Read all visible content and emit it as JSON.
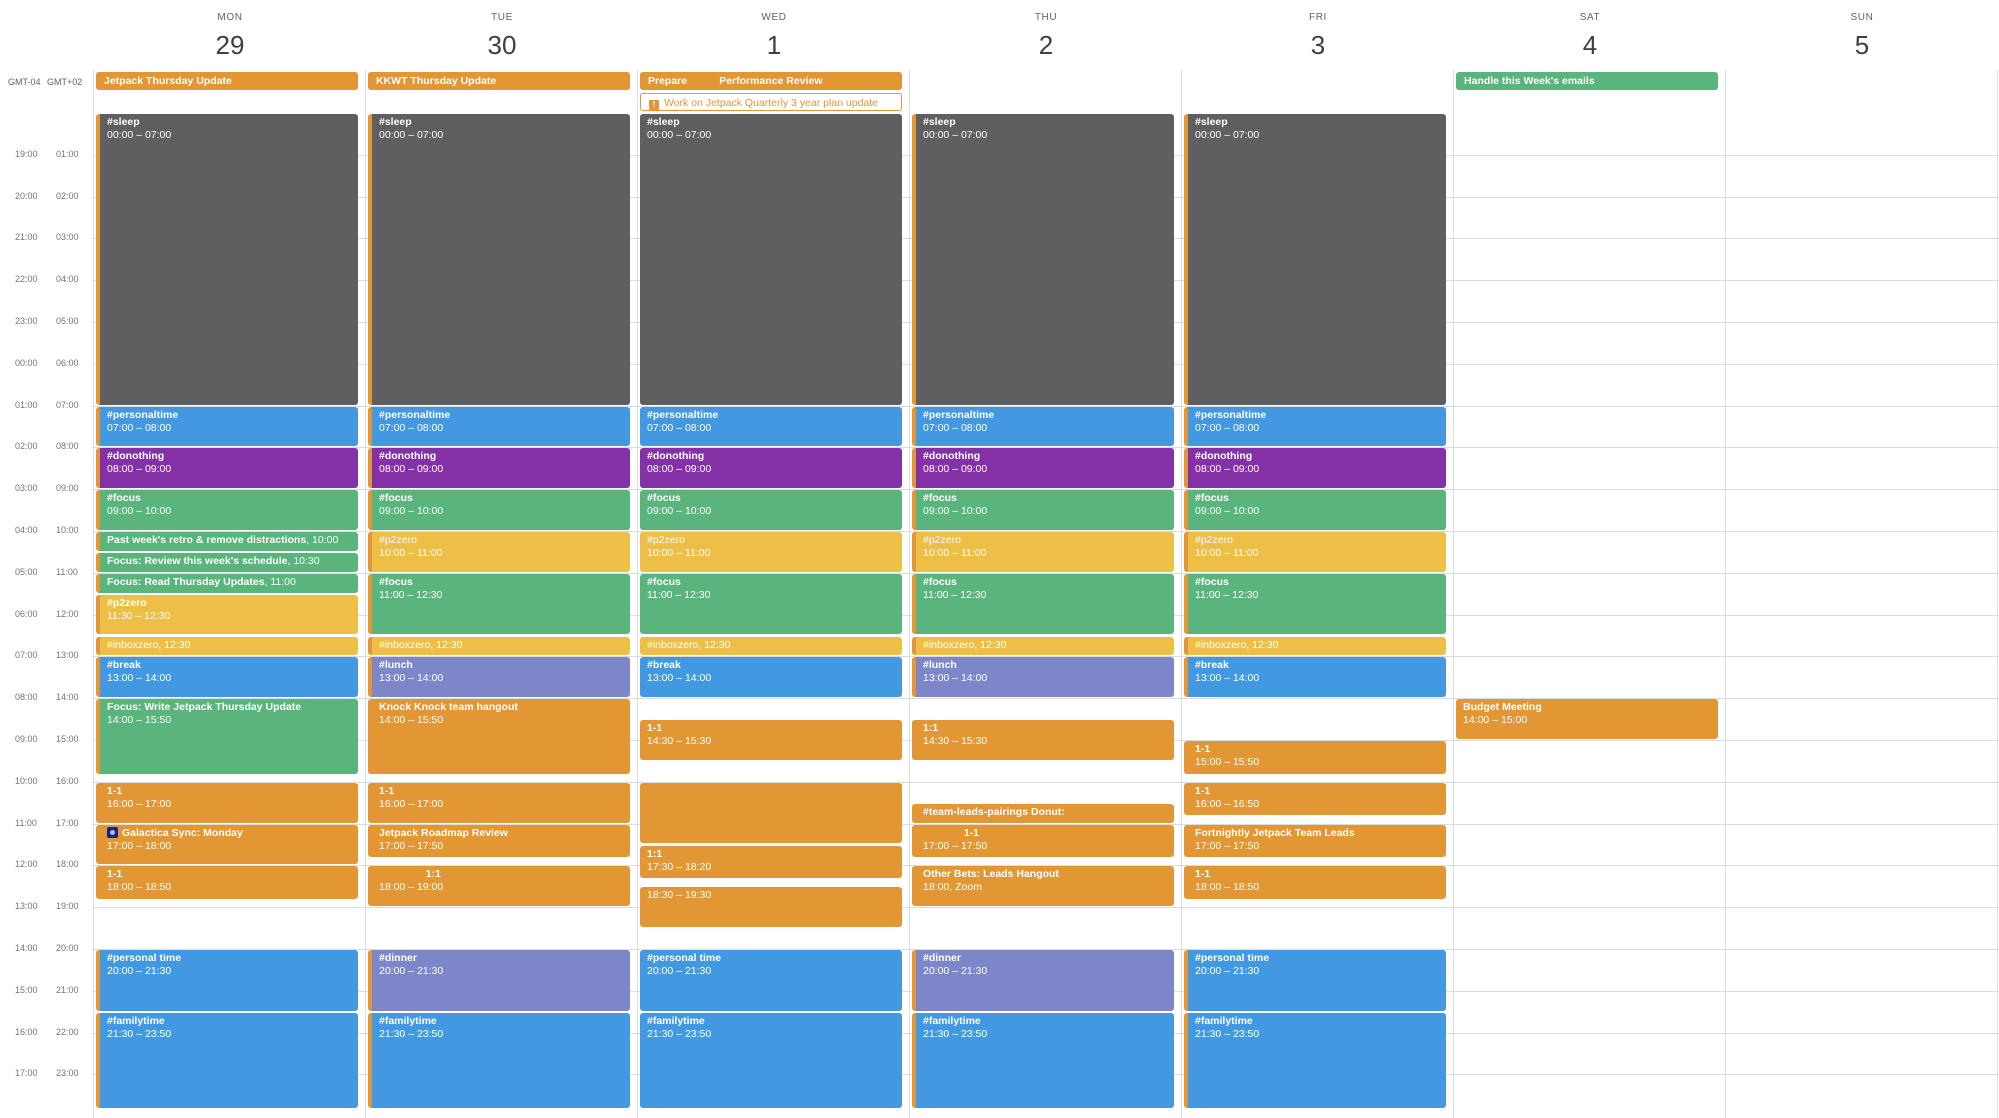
{
  "days": [
    {
      "name": "MON",
      "num": "29"
    },
    {
      "name": "TUE",
      "num": "30"
    },
    {
      "name": "WED",
      "num": "1"
    },
    {
      "name": "THU",
      "num": "2"
    },
    {
      "name": "FRI",
      "num": "3"
    },
    {
      "name": "SAT",
      "num": "4"
    },
    {
      "name": "SUN",
      "num": "5"
    }
  ],
  "timezones": [
    "GMT-04",
    "GMT+02"
  ],
  "times_a": [
    "19:00",
    "20:00",
    "21:00",
    "22:00",
    "23:00",
    "00:00",
    "01:00",
    "02:00",
    "03:00",
    "04:00",
    "05:00",
    "06:00",
    "07:00",
    "08:00",
    "09:00",
    "10:00",
    "11:00",
    "12:00",
    "13:00",
    "14:00",
    "15:00",
    "16:00",
    "17:00"
  ],
  "times_b": [
    "01:00",
    "02:00",
    "03:00",
    "04:00",
    "05:00",
    "06:00",
    "07:00",
    "08:00",
    "09:00",
    "10:00",
    "11:00",
    "12:00",
    "13:00",
    "14:00",
    "15:00",
    "16:00",
    "17:00",
    "18:00",
    "19:00",
    "20:00",
    "21:00",
    "22:00",
    "23:00"
  ],
  "colors": {
    "grey": "#5f5f5f",
    "blue": "#4299e1",
    "purple": "#8431a8",
    "green": "#5ab57c",
    "yellow": "#eebf47",
    "lavender": "#7c86c9",
    "orange": "#e39634",
    "allday_green": "#5ab57c"
  },
  "allday": [
    {
      "day": 0,
      "label": "Jetpack Thursday Update",
      "color": "orange"
    },
    {
      "day": 1,
      "label": "KKWT Thursday Update",
      "color": "orange"
    },
    {
      "day": 2,
      "label": "Prepare           Performance Review",
      "color": "orange"
    },
    {
      "day": 2,
      "row": 1,
      "label": "Work on Jetpack Quarterly 3 year plan update",
      "outline": true
    },
    {
      "day": 5,
      "label": "Handle this Week's emails",
      "color": "allday_green"
    }
  ],
  "events": [
    {
      "day": 0,
      "start": 0,
      "end": 7,
      "color": "grey",
      "title": "#sleep",
      "time": "00:00 – 07:00"
    },
    {
      "day": 0,
      "start": 7,
      "end": 8,
      "color": "blue",
      "title": "#personaltime",
      "time": "07:00 – 08:00"
    },
    {
      "day": 0,
      "start": 8,
      "end": 9,
      "color": "purple",
      "title": "#donothing",
      "time": "08:00 – 09:00"
    },
    {
      "day": 0,
      "start": 9,
      "end": 10,
      "color": "green",
      "title": "#focus",
      "time": "09:00 – 10:00"
    },
    {
      "day": 0,
      "start": 10,
      "end": 10.5,
      "color": "green",
      "title": "Past week's retro & remove distractions",
      "time": ", 10:00",
      "inline": true
    },
    {
      "day": 0,
      "start": 10.5,
      "end": 11,
      "color": "green",
      "title": "Focus: Review this week's schedule",
      "time": ", 10:30",
      "inline": true
    },
    {
      "day": 0,
      "start": 11,
      "end": 11.5,
      "color": "green",
      "title": "Focus: Read Thursday Updates",
      "time": ", 11:00",
      "inline": true
    },
    {
      "day": 0,
      "start": 11.5,
      "end": 12.5,
      "color": "yellow",
      "title": "#p2zero",
      "time": "11:30 – 12:30"
    },
    {
      "day": 0,
      "start": 12.5,
      "end": 13,
      "color": "yellow",
      "title": "#inboxzero",
      "time": ", 12:30",
      "inline": true,
      "light": true
    },
    {
      "day": 0,
      "start": 13,
      "end": 14,
      "color": "blue",
      "title": "#break",
      "time": "13:00 – 14:00"
    },
    {
      "day": 0,
      "start": 14,
      "end": 15.83,
      "color": "green",
      "title": "Focus: Write Jetpack Thursday Update",
      "time": "14:00 – 15:50"
    },
    {
      "day": 0,
      "start": 16,
      "end": 17,
      "color": "orange",
      "title": "1-1",
      "time": "16:00 – 17:00"
    },
    {
      "day": 0,
      "start": 17,
      "end": 18,
      "color": "orange",
      "title": "Galactica Sync: Monday",
      "time": "17:00 – 18:00",
      "icon": true
    },
    {
      "day": 0,
      "start": 18,
      "end": 18.83,
      "color": "orange",
      "title": "1-1",
      "time": "18:00 – 18:50"
    },
    {
      "day": 0,
      "start": 20,
      "end": 21.5,
      "color": "blue",
      "title": "#personal time",
      "time": "20:00 – 21:30"
    },
    {
      "day": 0,
      "start": 21.5,
      "end": 23.83,
      "color": "blue",
      "title": "#familytime",
      "time": "21:30 – 23:50"
    },
    {
      "day": 1,
      "start": 0,
      "end": 7,
      "color": "grey",
      "title": "#sleep",
      "time": "00:00 – 07:00"
    },
    {
      "day": 1,
      "start": 7,
      "end": 8,
      "color": "blue",
      "title": "#personaltime",
      "time": "07:00 – 08:00"
    },
    {
      "day": 1,
      "start": 8,
      "end": 9,
      "color": "purple",
      "title": "#donothing",
      "time": "08:00 – 09:00"
    },
    {
      "day": 1,
      "start": 9,
      "end": 10,
      "color": "green",
      "title": "#focus",
      "time": "09:00 – 10:00"
    },
    {
      "day": 1,
      "start": 10,
      "end": 11,
      "color": "yellow",
      "title": "#p2zero",
      "time": "10:00 – 11:00",
      "light": true
    },
    {
      "day": 1,
      "start": 11,
      "end": 12.5,
      "color": "green",
      "title": "#focus",
      "time": "11:00 – 12:30"
    },
    {
      "day": 1,
      "start": 12.5,
      "end": 13,
      "color": "yellow",
      "title": "#inboxzero",
      "time": ", 12:30",
      "inline": true,
      "light": true
    },
    {
      "day": 1,
      "start": 13,
      "end": 14,
      "color": "lavender",
      "title": "#lunch",
      "time": "13:00 – 14:00"
    },
    {
      "day": 1,
      "start": 14,
      "end": 15.83,
      "color": "orange",
      "title": "Knock Knock team hangout",
      "time": "14:00 – 15:50"
    },
    {
      "day": 1,
      "start": 16,
      "end": 17,
      "color": "orange",
      "title": "1-1",
      "time": "16:00 – 17:00"
    },
    {
      "day": 1,
      "start": 17,
      "end": 17.83,
      "color": "orange",
      "title": "Jetpack Roadmap Review",
      "time": "17:00 – 17:50"
    },
    {
      "day": 1,
      "start": 18,
      "end": 19,
      "color": "orange",
      "title": "                1:1",
      "time": "18:00 – 19:00"
    },
    {
      "day": 1,
      "start": 20,
      "end": 21.5,
      "color": "lavender",
      "title": "#dinner",
      "time": "20:00 – 21:30"
    },
    {
      "day": 1,
      "start": 21.5,
      "end": 23.83,
      "color": "blue",
      "title": "#familytime",
      "time": "21:30 – 23:50"
    },
    {
      "day": 2,
      "start": 0,
      "end": 7,
      "color": "grey",
      "title": "#sleep",
      "time": "00:00 – 07:00"
    },
    {
      "day": 2,
      "start": 7,
      "end": 8,
      "color": "blue",
      "title": "#personaltime",
      "time": "07:00 – 08:00"
    },
    {
      "day": 2,
      "start": 8,
      "end": 9,
      "color": "purple",
      "title": "#donothing",
      "time": "08:00 – 09:00"
    },
    {
      "day": 2,
      "start": 9,
      "end": 10,
      "color": "green",
      "title": "#focus",
      "time": "09:00 – 10:00"
    },
    {
      "day": 2,
      "start": 10,
      "end": 11,
      "color": "yellow",
      "title": "#p2zero",
      "time": "10:00 – 11:00",
      "light": true
    },
    {
      "day": 2,
      "start": 11,
      "end": 12.5,
      "color": "green",
      "title": "#focus",
      "time": "11:00 – 12:30"
    },
    {
      "day": 2,
      "start": 12.5,
      "end": 13,
      "color": "yellow",
      "title": "#inboxzero",
      "time": ", 12:30",
      "inline": true,
      "light": true
    },
    {
      "day": 2,
      "start": 13,
      "end": 14,
      "color": "blue",
      "title": "#break",
      "time": "13:00 – 14:00"
    },
    {
      "day": 2,
      "start": 14.5,
      "end": 15.5,
      "color": "orange",
      "title": "1-1",
      "time": "14:30 – 15:30"
    },
    {
      "day": 2,
      "start": 16,
      "end": 17.5,
      "color": "orange",
      "title": "",
      "time": ""
    },
    {
      "day": 2,
      "start": 17.5,
      "end": 18.33,
      "color": "orange",
      "title": "1:1",
      "time": "17:30 – 18:20",
      "thin": true
    },
    {
      "day": 2,
      "start": 18.5,
      "end": 19.5,
      "color": "orange",
      "title": "",
      "time": "18:30 – 19:30"
    },
    {
      "day": 2,
      "start": 20,
      "end": 21.5,
      "color": "blue",
      "title": "#personal time",
      "time": "20:00 – 21:30"
    },
    {
      "day": 2,
      "start": 21.5,
      "end": 23.83,
      "color": "blue",
      "title": "#familytime",
      "time": "21:30 – 23:50"
    },
    {
      "day": 3,
      "start": 0,
      "end": 7,
      "color": "grey",
      "title": "#sleep",
      "time": "00:00 – 07:00"
    },
    {
      "day": 3,
      "start": 7,
      "end": 8,
      "color": "blue",
      "title": "#personaltime",
      "time": "07:00 – 08:00"
    },
    {
      "day": 3,
      "start": 8,
      "end": 9,
      "color": "purple",
      "title": "#donothing",
      "time": "08:00 – 09:00"
    },
    {
      "day": 3,
      "start": 9,
      "end": 10,
      "color": "green",
      "title": "#focus",
      "time": "09:00 – 10:00"
    },
    {
      "day": 3,
      "start": 10,
      "end": 11,
      "color": "yellow",
      "title": "#p2zero",
      "time": "10:00 – 11:00",
      "light": true
    },
    {
      "day": 3,
      "start": 11,
      "end": 12.5,
      "color": "green",
      "title": "#focus",
      "time": "11:00 – 12:30"
    },
    {
      "day": 3,
      "start": 12.5,
      "end": 13,
      "color": "yellow",
      "title": "#inboxzero",
      "time": ", 12:30",
      "inline": true,
      "light": true
    },
    {
      "day": 3,
      "start": 13,
      "end": 14,
      "color": "lavender",
      "title": "#lunch",
      "time": "13:00 – 14:00"
    },
    {
      "day": 3,
      "start": 14.5,
      "end": 15.5,
      "color": "orange",
      "title": "1:1",
      "time": "14:30 – 15:30"
    },
    {
      "day": 3,
      "start": 16.5,
      "end": 17,
      "color": "orange",
      "title": "#team-leads-pairings Donut:",
      "time": "",
      "inline": true
    },
    {
      "day": 3,
      "start": 17,
      "end": 17.83,
      "color": "orange",
      "title": "              1-1",
      "time": "17:00 – 17:50"
    },
    {
      "day": 3,
      "start": 18,
      "end": 19,
      "color": "orange",
      "title": "Other Bets: Leads Hangout",
      "time": "18:00, Zoom"
    },
    {
      "day": 3,
      "start": 20,
      "end": 21.5,
      "color": "lavender",
      "title": "#dinner",
      "time": "20:00 – 21:30"
    },
    {
      "day": 3,
      "start": 21.5,
      "end": 23.83,
      "color": "blue",
      "title": "#familytime",
      "time": "21:30 – 23:50"
    },
    {
      "day": 4,
      "start": 0,
      "end": 7,
      "color": "grey",
      "title": "#sleep",
      "time": "00:00 – 07:00"
    },
    {
      "day": 4,
      "start": 7,
      "end": 8,
      "color": "blue",
      "title": "#personaltime",
      "time": "07:00 – 08:00"
    },
    {
      "day": 4,
      "start": 8,
      "end": 9,
      "color": "purple",
      "title": "#donothing",
      "time": "08:00 – 09:00"
    },
    {
      "day": 4,
      "start": 9,
      "end": 10,
      "color": "green",
      "title": "#focus",
      "time": "09:00 – 10:00"
    },
    {
      "day": 4,
      "start": 10,
      "end": 11,
      "color": "yellow",
      "title": "#p2zero",
      "time": "10:00 – 11:00",
      "light": true
    },
    {
      "day": 4,
      "start": 11,
      "end": 12.5,
      "color": "green",
      "title": "#focus",
      "time": "11:00 – 12:30"
    },
    {
      "day": 4,
      "start": 12.5,
      "end": 13,
      "color": "yellow",
      "title": "#inboxzero",
      "time": ", 12:30",
      "inline": true,
      "light": true
    },
    {
      "day": 4,
      "start": 13,
      "end": 14,
      "color": "blue",
      "title": "#break",
      "time": "13:00 – 14:00"
    },
    {
      "day": 4,
      "start": 15,
      "end": 15.83,
      "color": "orange",
      "title": "1-1",
      "time": "15:00 – 15:50"
    },
    {
      "day": 4,
      "start": 16,
      "end": 16.83,
      "color": "orange",
      "title": "1-1",
      "time": "16:00 – 16:50"
    },
    {
      "day": 4,
      "start": 17,
      "end": 17.83,
      "color": "orange",
      "title": "Fortnightly Jetpack Team Leads",
      "time": "17:00 – 17:50"
    },
    {
      "day": 4,
      "start": 18,
      "end": 18.83,
      "color": "orange",
      "title": "1-1",
      "time": "18:00 – 18:50"
    },
    {
      "day": 4,
      "start": 20,
      "end": 21.5,
      "color": "blue",
      "title": "#personal time",
      "time": "20:00 – 21:30"
    },
    {
      "day": 4,
      "start": 21.5,
      "end": 23.83,
      "color": "blue",
      "title": "#familytime",
      "time": "21:30 – 23:50"
    },
    {
      "day": 5,
      "start": 14,
      "end": 15,
      "color": "orange",
      "title": "Budget Meeting",
      "time": "14:00 – 15:00",
      "noborder": true
    }
  ]
}
